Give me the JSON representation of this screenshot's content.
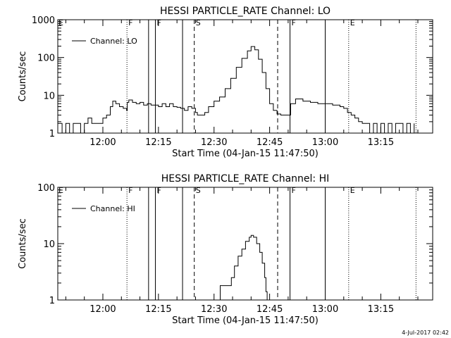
{
  "footer_date": "4-Jul-2017 02:42",
  "chart_data": [
    {
      "type": "line",
      "title": "HESSI PARTICLE_RATE Channel: LO",
      "xlabel": "Start Time (04-Jan-15 11:47:50)",
      "ylabel": "Counts/sec",
      "yscale": "log",
      "xlim": [
        "11:47:50",
        "13:29:00"
      ],
      "ylim": [
        1,
        1000
      ],
      "x_ticks": [
        "12:00",
        "12:15",
        "12:30",
        "12:45",
        "13:00",
        "13:15"
      ],
      "y_ticks": [
        "1",
        "10",
        "100",
        "1000"
      ],
      "legend": {
        "label": "Channel: LO",
        "position": "top-left"
      },
      "event_markers": [
        {
          "time": "12:06:30",
          "style": "dotted",
          "label": "F"
        },
        {
          "time": "12:12:20",
          "style": "solid",
          "label": ""
        },
        {
          "time": "12:14:10",
          "style": "solid",
          "label": "F"
        },
        {
          "time": "12:21:30",
          "style": "solid",
          "label": ""
        },
        {
          "time": "12:24:40",
          "style": "dashed",
          "label": "S"
        },
        {
          "time": "12:47:10",
          "style": "dashed",
          "label": ""
        },
        {
          "time": "12:50:30",
          "style": "solid",
          "label": "F"
        },
        {
          "time": "13:00:00",
          "style": "solid",
          "label": ""
        },
        {
          "time": "13:06:20",
          "style": "dotted",
          "label": "E"
        },
        {
          "time": "13:24:30",
          "style": "dotted",
          "label": ""
        }
      ],
      "edge_labels": [
        "E",
        "F",
        "F",
        "S",
        "F",
        "E"
      ],
      "series": [
        {
          "name": "Channel: LO",
          "points": [
            [
              "11:47:50",
              1.8
            ],
            [
              "11:49:00",
              1
            ],
            [
              "11:50:00",
              1.8
            ],
            [
              "11:51:00",
              1
            ],
            [
              "11:52:00",
              1.8
            ],
            [
              "11:53:00",
              1.8
            ],
            [
              "11:54:00",
              1
            ],
            [
              "11:55:00",
              1.8
            ],
            [
              "11:56:00",
              2.5
            ],
            [
              "11:57:00",
              1.8
            ],
            [
              "11:58:00",
              1.8
            ],
            [
              "11:59:00",
              1.8
            ],
            [
              "12:00:00",
              2.5
            ],
            [
              "12:01:00",
              3.0
            ],
            [
              "12:02:00",
              5.0
            ],
            [
              "12:02:40",
              7.0
            ],
            [
              "12:03:30",
              6.0
            ],
            [
              "12:04:30",
              5.0
            ],
            [
              "12:05:30",
              4.5
            ],
            [
              "12:06:25",
              4.0
            ],
            [
              "12:06:35",
              6.5
            ],
            [
              "12:07:00",
              7.5
            ],
            [
              "12:08:00",
              6.5
            ],
            [
              "12:09:00",
              6.0
            ],
            [
              "12:10:00",
              6.5
            ],
            [
              "12:11:00",
              5.5
            ],
            [
              "12:12:00",
              6.0
            ],
            [
              "12:13:00",
              5.5
            ],
            [
              "12:14:00",
              5.5
            ],
            [
              "12:15:00",
              5.0
            ],
            [
              "12:16:00",
              6.0
            ],
            [
              "12:17:00",
              5.0
            ],
            [
              "12:18:00",
              6.0
            ],
            [
              "12:19:00",
              5.0
            ],
            [
              "12:20:00",
              4.8
            ],
            [
              "12:21:00",
              4.5
            ],
            [
              "12:22:00",
              4.0
            ],
            [
              "12:23:00",
              5.0
            ],
            [
              "12:24:00",
              4.5
            ],
            [
              "12:25:00",
              3.5
            ],
            [
              "12:25:30",
              3.0
            ],
            [
              "12:26:30",
              3.0
            ],
            [
              "12:27:30",
              3.5
            ],
            [
              "12:28:30",
              5
            ],
            [
              "12:30:00",
              7
            ],
            [
              "12:31:30",
              9
            ],
            [
              "12:33:00",
              15
            ],
            [
              "12:34:30",
              28
            ],
            [
              "12:36:00",
              55
            ],
            [
              "12:37:30",
              95
            ],
            [
              "12:39:00",
              150
            ],
            [
              "12:40:00",
              195
            ],
            [
              "12:41:00",
              160
            ],
            [
              "12:42:00",
              90
            ],
            [
              "12:43:00",
              40
            ],
            [
              "12:44:00",
              15
            ],
            [
              "12:45:00",
              6
            ],
            [
              "12:46:00",
              4
            ],
            [
              "12:47:00",
              3.2
            ],
            [
              "12:48:00",
              3.0
            ],
            [
              "12:50:00",
              3.0
            ],
            [
              "12:50:40",
              6.0
            ],
            [
              "12:52:00",
              8.0
            ],
            [
              "12:54:00",
              7.0
            ],
            [
              "12:56:00",
              6.5
            ],
            [
              "12:58:00",
              6.0
            ],
            [
              "13:00:00",
              6.0
            ],
            [
              "13:02:00",
              5.5
            ],
            [
              "13:04:00",
              5.0
            ],
            [
              "13:05:00",
              4.5
            ],
            [
              "13:06:00",
              3.5
            ],
            [
              "13:07:00",
              3.0
            ],
            [
              "13:08:00",
              2.5
            ],
            [
              "13:09:00",
              2.0
            ],
            [
              "13:10:00",
              1.8
            ],
            [
              "13:11:00",
              1.8
            ],
            [
              "13:12:00",
              1
            ],
            [
              "13:13:00",
              1.8
            ],
            [
              "13:14:00",
              1
            ],
            [
              "13:15:00",
              1.8
            ],
            [
              "13:16:00",
              1
            ],
            [
              "13:17:00",
              1.8
            ],
            [
              "13:18:00",
              1
            ],
            [
              "13:19:00",
              1.8
            ],
            [
              "13:20:00",
              1.8
            ],
            [
              "13:21:00",
              1
            ],
            [
              "13:22:00",
              1.8
            ],
            [
              "13:23:00",
              1
            ],
            [
              "13:24:00",
              1.8
            ]
          ]
        }
      ]
    },
    {
      "type": "line",
      "title": "HESSI PARTICLE_RATE Channel: HI",
      "xlabel": "Start Time (04-Jan-15 11:47:50)",
      "ylabel": "Counts/sec",
      "yscale": "log",
      "xlim": [
        "11:47:50",
        "13:29:00"
      ],
      "ylim": [
        1,
        100
      ],
      "x_ticks": [
        "12:00",
        "12:15",
        "12:30",
        "12:45",
        "13:00",
        "13:15"
      ],
      "y_ticks": [
        "1",
        "10",
        "100"
      ],
      "legend": {
        "label": "Channel: HI",
        "position": "top-left"
      },
      "event_markers": [
        {
          "time": "12:06:30",
          "style": "dotted",
          "label": "F"
        },
        {
          "time": "12:12:20",
          "style": "solid",
          "label": ""
        },
        {
          "time": "12:14:10",
          "style": "solid",
          "label": "F"
        },
        {
          "time": "12:21:30",
          "style": "solid",
          "label": ""
        },
        {
          "time": "12:24:40",
          "style": "dashed",
          "label": "S"
        },
        {
          "time": "12:47:10",
          "style": "dashed",
          "label": ""
        },
        {
          "time": "12:50:30",
          "style": "solid",
          "label": "F"
        },
        {
          "time": "13:00:00",
          "style": "solid",
          "label": ""
        },
        {
          "time": "13:06:20",
          "style": "dotted",
          "label": "E"
        },
        {
          "time": "13:24:30",
          "style": "dotted",
          "label": ""
        }
      ],
      "edge_labels": [
        "E",
        "F",
        "F",
        "S",
        "F",
        "E"
      ],
      "series": [
        {
          "name": "Channel: HI",
          "points": [
            [
              "12:31:10",
              1
            ],
            [
              "12:31:40",
              1.8
            ],
            [
              "12:33:00",
              1.8
            ],
            [
              "12:34:00",
              1.8
            ],
            [
              "12:34:40",
              2.5
            ],
            [
              "12:35:30",
              4
            ],
            [
              "12:36:30",
              6
            ],
            [
              "12:37:30",
              8
            ],
            [
              "12:38:30",
              11
            ],
            [
              "12:39:30",
              13
            ],
            [
              "12:40:00",
              14
            ],
            [
              "12:40:40",
              13
            ],
            [
              "12:41:30",
              10
            ],
            [
              "12:42:20",
              7
            ],
            [
              "12:43:00",
              4.5
            ],
            [
              "12:43:40",
              2.5
            ],
            [
              "12:44:00",
              1.4
            ],
            [
              "12:44:20",
              1
            ]
          ]
        }
      ]
    }
  ]
}
